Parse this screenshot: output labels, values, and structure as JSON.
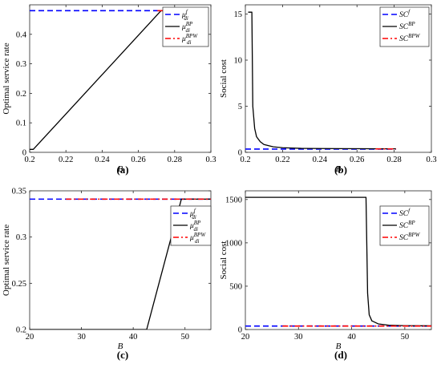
{
  "chart_data": [
    {
      "type": "line",
      "panel_label": "(a)",
      "ylabel": "Optimal service rate",
      "xlabel": "B",
      "xlim": [
        0.2,
        0.3
      ],
      "ylim": [
        0,
        0.5
      ],
      "xticks": [
        "0.2",
        "0.22",
        "0.24",
        "0.26",
        "0.28",
        "0.3"
      ],
      "yticks": [
        "0",
        "0.1",
        "0.2",
        "0.3",
        "0.4"
      ],
      "legend_position": "top-right",
      "grid": false,
      "series": [
        {
          "name": "μ_di^f",
          "label_main": "μ",
          "label_sub": "di",
          "label_sup": "f",
          "color": "#0000ff",
          "dash": "7,4",
          "width": 1.6,
          "points": [
            [
              0.2,
              0.48
            ],
            [
              0.281,
              0.48
            ]
          ]
        },
        {
          "name": "μ_di^BP",
          "label_main": "μ",
          "label_sub": "di",
          "label_sup": "BP",
          "color": "#000000",
          "dash": "",
          "width": 1.3,
          "points": [
            [
              0.2,
              0.01
            ],
            [
              0.202,
              0.01
            ],
            [
              0.2725,
              0.48
            ],
            [
              0.281,
              0.48
            ]
          ]
        },
        {
          "name": "μ_di^BPW",
          "label_main": "μ",
          "label_sub": "di",
          "label_sup": "BPW",
          "color": "#ff0000",
          "dash": "7,3,2,3",
          "width": 1.6,
          "points": [
            [
              0.2705,
              0.48
            ],
            [
              0.281,
              0.48
            ]
          ]
        }
      ]
    },
    {
      "type": "line",
      "panel_label": "(b)",
      "ylabel": "Social cost",
      "xlabel": "B",
      "xlim": [
        0.2,
        0.3
      ],
      "ylim": [
        0,
        16
      ],
      "xticks": [
        "0.2",
        "0.22",
        "0.24",
        "0.26",
        "0.28",
        "0.3"
      ],
      "yticks": [
        "0",
        "5",
        "10",
        "15"
      ],
      "legend_position": "top-right",
      "grid": false,
      "series": [
        {
          "name": "SC^f",
          "label_main": "SC",
          "label_sub": "",
          "label_sup": "f",
          "color": "#0000ff",
          "dash": "7,4",
          "width": 1.6,
          "points": [
            [
              0.2,
              0.35
            ],
            [
              0.281,
              0.35
            ]
          ]
        },
        {
          "name": "SC^BP",
          "label_main": "SC",
          "label_sub": "",
          "label_sup": "BP",
          "color": "#000000",
          "dash": "",
          "width": 1.3,
          "points": [
            [
              0.2015,
              15.2
            ],
            [
              0.2035,
              15.2
            ],
            [
              0.204,
              5.0
            ],
            [
              0.205,
              2.6
            ],
            [
              0.206,
              1.7
            ],
            [
              0.208,
              1.15
            ],
            [
              0.21,
              0.85
            ],
            [
              0.215,
              0.6
            ],
            [
              0.22,
              0.5
            ],
            [
              0.23,
              0.43
            ],
            [
              0.25,
              0.4
            ],
            [
              0.281,
              0.38
            ]
          ]
        },
        {
          "name": "SC^BPW",
          "label_main": "SC",
          "label_sub": "",
          "label_sup": "BPW",
          "color": "#ff0000",
          "dash": "7,3,2,3",
          "width": 1.6,
          "points": [
            [
              0.27,
              0.37
            ],
            [
              0.281,
              0.37
            ]
          ]
        }
      ]
    },
    {
      "type": "line",
      "panel_label": "(c)",
      "ylabel": "Optimal service rate",
      "xlabel": "B",
      "xlim": [
        20,
        55
      ],
      "ylim": [
        0.2,
        0.35
      ],
      "xticks": [
        "20",
        "30",
        "40",
        "50"
      ],
      "yticks": [
        "0.2",
        "0.25",
        "0.3",
        "0.35"
      ],
      "legend_position": "top-right",
      "grid": false,
      "series": [
        {
          "name": "μ_di^f",
          "label_main": "μ",
          "label_sub": "di",
          "label_sup": "f",
          "color": "#0000ff",
          "dash": "7,4",
          "width": 1.6,
          "points": [
            [
              20,
              0.341
            ],
            [
              55,
              0.341
            ]
          ]
        },
        {
          "name": "μ_di^BP",
          "label_main": "μ",
          "label_sub": "di",
          "label_sup": "BP",
          "color": "#000000",
          "dash": "",
          "width": 1.3,
          "points": [
            [
              20,
              0.2
            ],
            [
              42.6,
              0.2
            ],
            [
              49.3,
              0.341
            ],
            [
              55,
              0.341
            ]
          ]
        },
        {
          "name": "μ_di^BPW",
          "label_main": "μ",
          "label_sub": "di",
          "label_sup": "BPW",
          "color": "#ff0000",
          "dash": "7,3,2,3",
          "width": 1.6,
          "points": [
            [
              27,
              0.341
            ],
            [
              55,
              0.341
            ]
          ]
        }
      ]
    },
    {
      "type": "line",
      "panel_label": "(d)",
      "ylabel": "Social cost",
      "xlabel": "B",
      "xlim": [
        20,
        55
      ],
      "ylim": [
        0,
        1600
      ],
      "xticks": [
        "20",
        "30",
        "40",
        "50"
      ],
      "yticks": [
        "0",
        "500",
        "1000",
        "1500"
      ],
      "legend_position": "top-right",
      "grid": false,
      "series": [
        {
          "name": "SC^f",
          "label_main": "SC",
          "label_sub": "",
          "label_sup": "f",
          "color": "#0000ff",
          "dash": "7,4",
          "width": 1.6,
          "points": [
            [
              20,
              40
            ],
            [
              55,
              40
            ]
          ]
        },
        {
          "name": "SC^BP",
          "label_main": "SC",
          "label_sub": "",
          "label_sup": "BP",
          "color": "#000000",
          "dash": "",
          "width": 1.3,
          "points": [
            [
              20,
              1525
            ],
            [
              42.7,
              1525
            ],
            [
              43.0,
              420
            ],
            [
              43.3,
              170
            ],
            [
              43.8,
              100
            ],
            [
              45,
              65
            ],
            [
              47,
              50
            ],
            [
              50,
              44
            ],
            [
              55,
              42
            ]
          ]
        },
        {
          "name": "SC^BPW",
          "label_main": "SC",
          "label_sub": "",
          "label_sup": "BPW",
          "color": "#ff0000",
          "dash": "7,3,2,3",
          "width": 1.6,
          "points": [
            [
              27,
              40
            ],
            [
              55,
              40
            ]
          ]
        }
      ]
    }
  ]
}
